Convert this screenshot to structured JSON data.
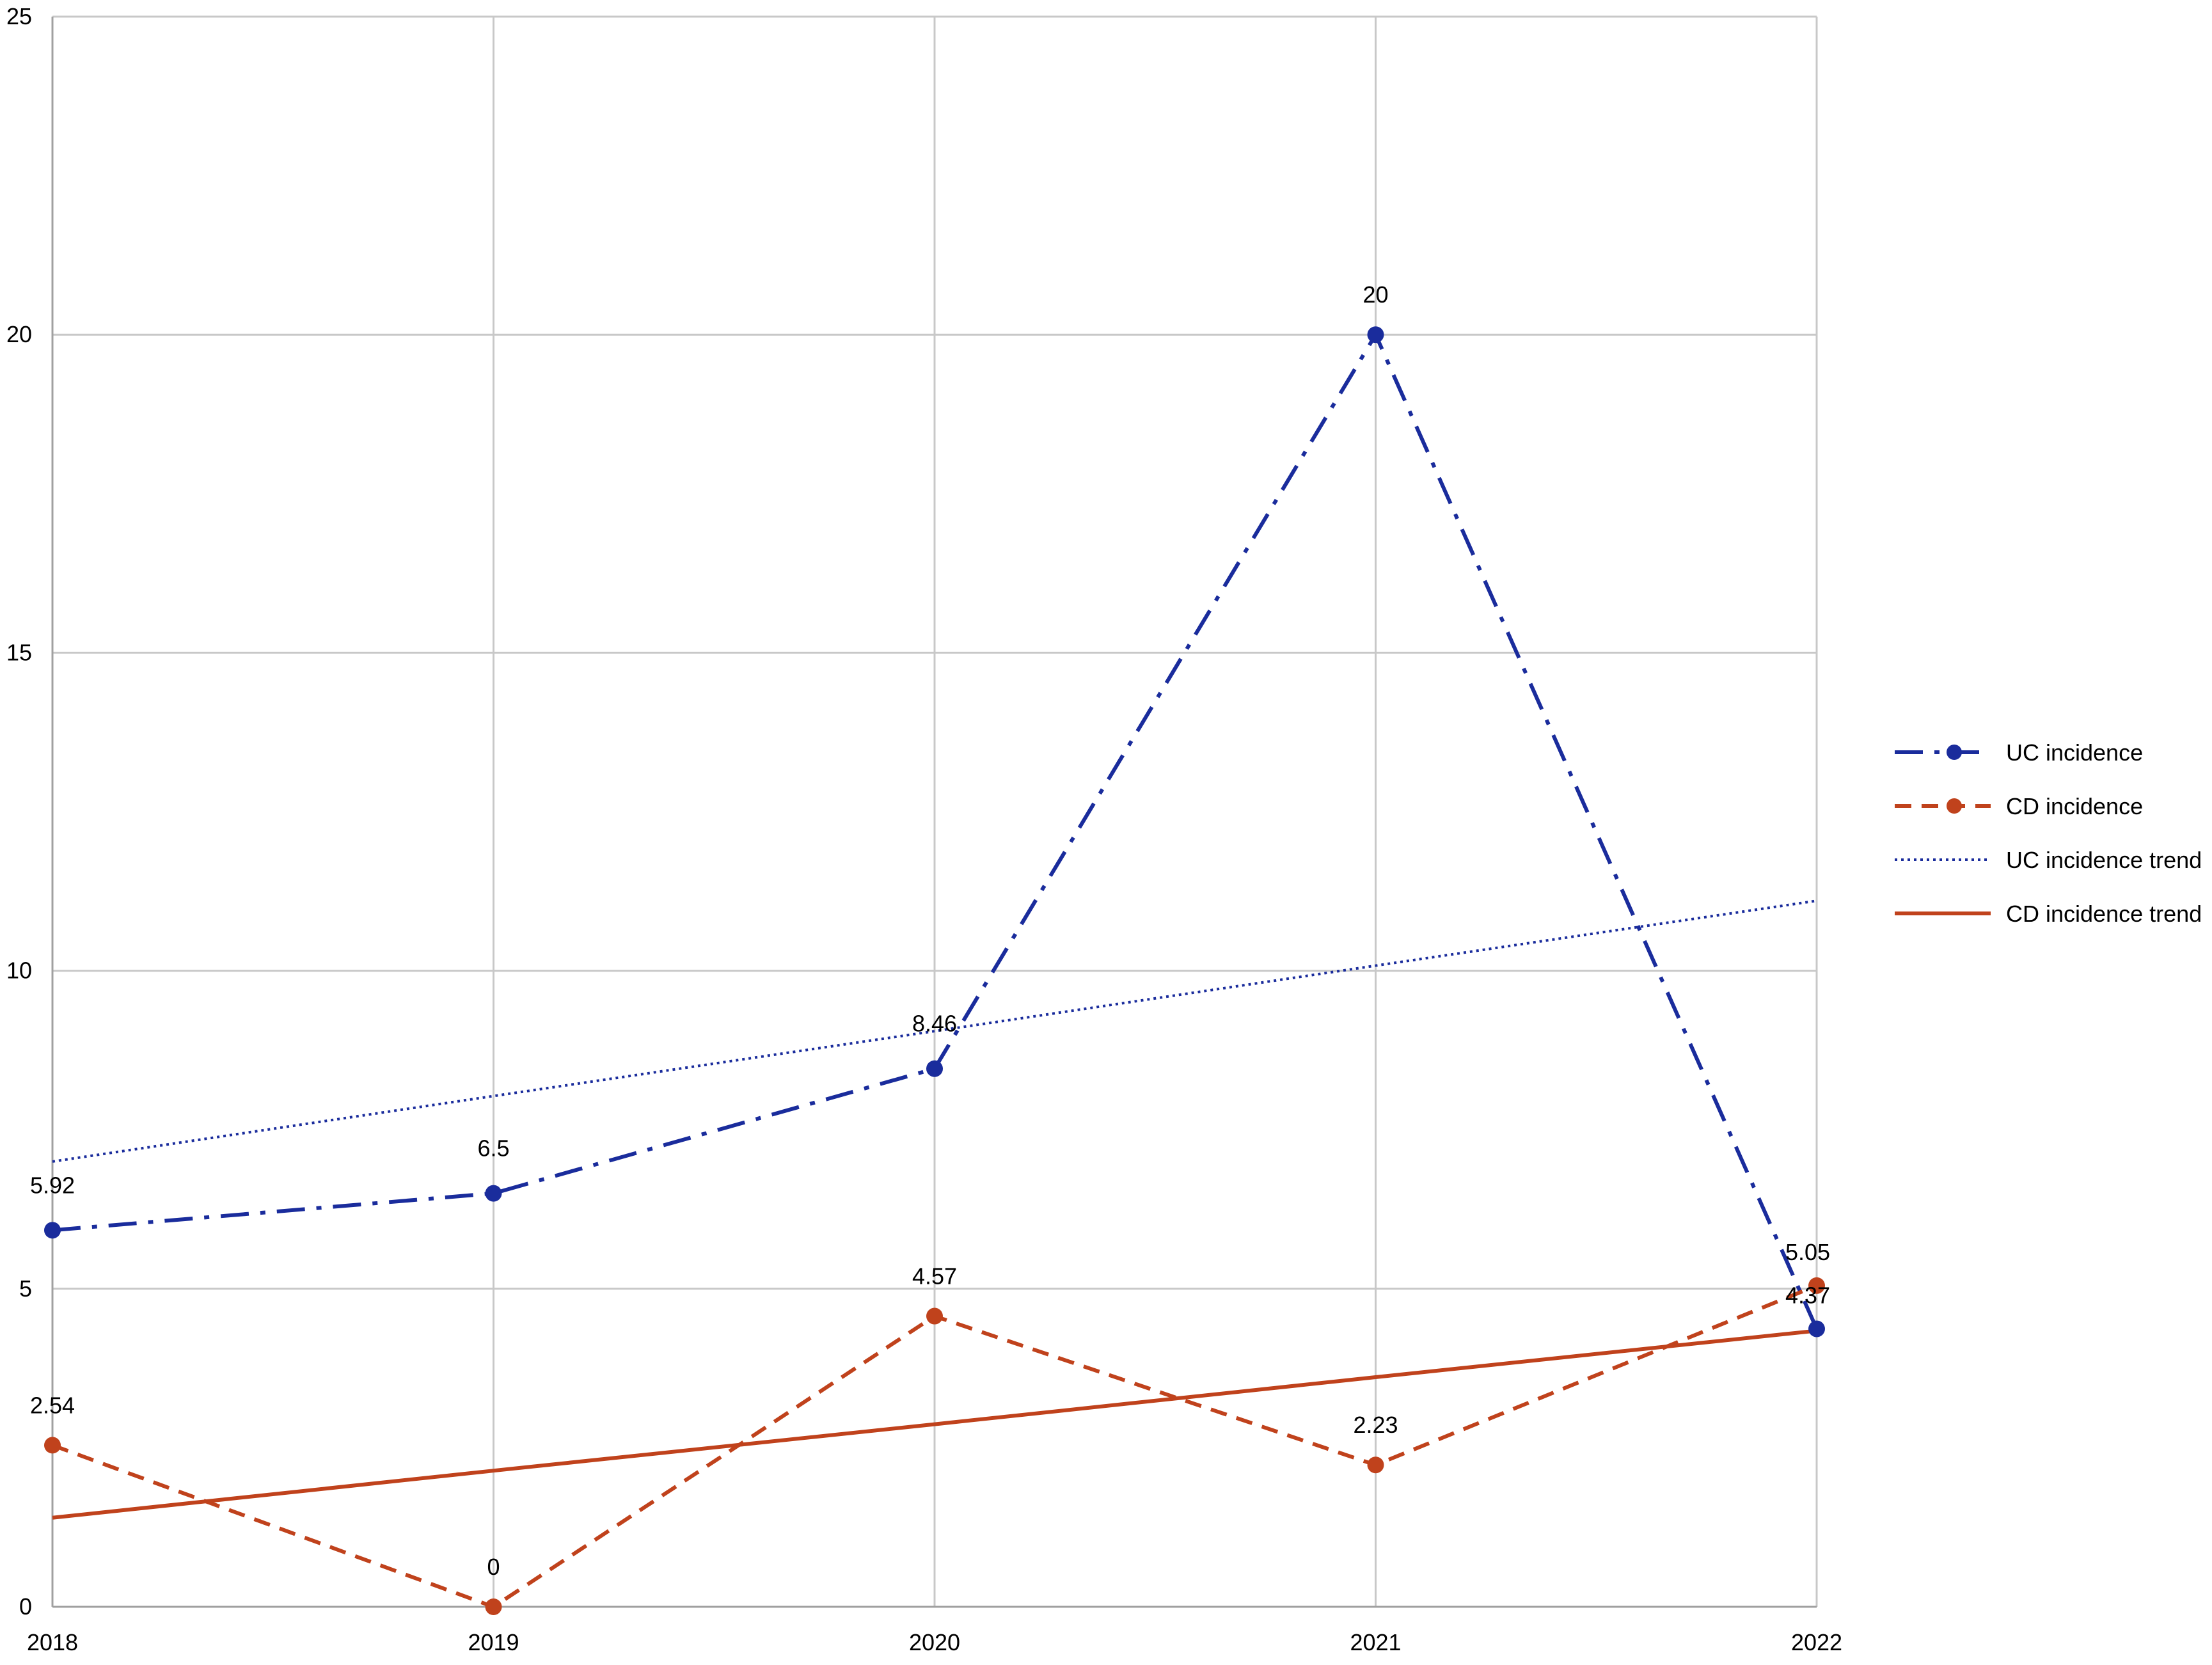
{
  "chart_data": {
    "type": "line",
    "title": "",
    "xlabel": "",
    "ylabel": "",
    "categories": [
      "2018",
      "2019",
      "2020",
      "2021",
      "2022"
    ],
    "ylim": [
      0,
      25
    ],
    "yticks": [
      0,
      5,
      10,
      15,
      20,
      25
    ],
    "grid": true,
    "legend": "right",
    "series": [
      {
        "name": "UC incidence",
        "values": [
          5.92,
          6.5,
          8.46,
          20,
          4.37
        ],
        "labels": [
          "5.92",
          "6.5",
          "8.46",
          "20",
          "4.37"
        ],
        "color": "#1a2c9c",
        "style": "dash-dot",
        "marker": true
      },
      {
        "name": "CD incidence",
        "values": [
          2.54,
          0,
          4.57,
          2.23,
          5.05
        ],
        "labels": [
          "2.54",
          "0",
          "4.57",
          "2.23",
          "5.05"
        ],
        "color": "#c0421c",
        "style": "dashed",
        "marker": true
      }
    ],
    "trendlines": [
      {
        "name": "UC incidence trend",
        "values": [
          7.0,
          8.03,
          9.05,
          10.08,
          11.1
        ],
        "color": "#1a2c9c",
        "style": "dotted"
      },
      {
        "name": "CD incidence trend",
        "values": [
          1.4,
          2.14,
          2.87,
          3.61,
          4.34
        ],
        "color": "#c0421c",
        "style": "solid"
      }
    ]
  }
}
